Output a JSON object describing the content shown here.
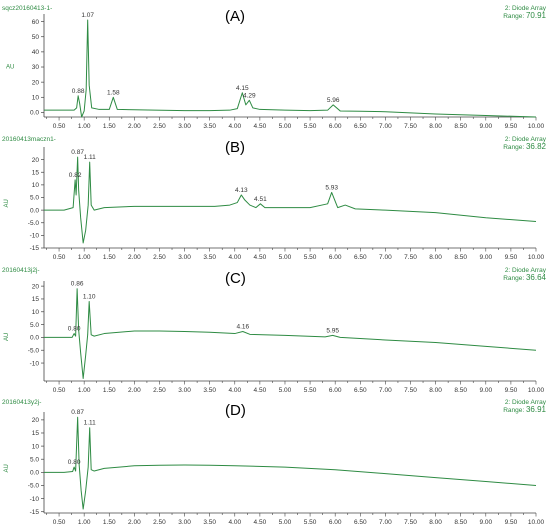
{
  "chart_data": [
    {
      "type": "line",
      "panel_label": "(A)",
      "sample": "sqcz20160413-1-",
      "detector": "2: Diode Array",
      "range_label": "Range:",
      "range_value": "70.91",
      "ylabel": "AU",
      "xlim": [
        0.2,
        10.0
      ],
      "ylim": [
        -3,
        65
      ],
      "x_ticks": [
        "0.50",
        "1.00",
        "1.50",
        "2.00",
        "2.50",
        "3.00",
        "3.50",
        "4.00",
        "4.50",
        "5.00",
        "5.50",
        "6.00",
        "6.50",
        "7.00",
        "7.50",
        "8.00",
        "8.50",
        "9.00",
        "9.50",
        "10.00"
      ],
      "y_ticks": [
        "0.0",
        "10",
        "20",
        "30",
        "40",
        "50",
        "60"
      ],
      "peaks": [
        {
          "x": 0.88,
          "label": "0.88"
        },
        {
          "x": 1.07,
          "label": "1.07"
        },
        {
          "x": 1.58,
          "label": "1.58"
        },
        {
          "x": 4.15,
          "label": "4.15"
        },
        {
          "x": 4.29,
          "label": "4.29"
        },
        {
          "x": 5.96,
          "label": "5.96"
        }
      ],
      "series": [
        {
          "x": [
            0.2,
            0.5,
            0.8,
            0.85,
            0.88,
            0.91,
            0.95,
            1.0,
            1.04,
            1.07,
            1.1,
            1.15,
            1.3,
            1.5,
            1.58,
            1.66,
            2.0,
            2.4,
            3.0,
            3.5,
            3.9,
            4.05,
            4.15,
            4.22,
            4.29,
            4.36,
            4.5,
            5.0,
            5.5,
            5.85,
            5.96,
            6.1,
            6.5,
            7.0,
            8.0,
            9.0,
            10.0
          ],
          "y": [
            1.5,
            1.5,
            1.5,
            3,
            11,
            6,
            -3,
            1,
            15,
            61,
            18,
            3,
            2,
            2,
            10,
            2,
            1.8,
            1.5,
            1.2,
            1.2,
            1.5,
            2.5,
            13,
            5,
            8,
            3,
            2,
            1.5,
            1.2,
            1.5,
            5,
            1,
            0.8,
            0.5,
            -1,
            -2,
            -3
          ]
        }
      ]
    },
    {
      "type": "line",
      "panel_label": "(B)",
      "sample": "20160413maczn1-",
      "detector": "2: Diode Array",
      "range_label": "Range:",
      "range_value": "36.82",
      "ylabel": "AU",
      "xlim": [
        0.2,
        10.0
      ],
      "ylim": [
        -15,
        25
      ],
      "x_ticks": [
        "0.50",
        "1.00",
        "1.50",
        "2.00",
        "2.50",
        "3.00",
        "3.50",
        "4.00",
        "4.50",
        "5.00",
        "5.50",
        "6.00",
        "6.50",
        "7.00",
        "7.50",
        "8.00",
        "8.50",
        "9.00",
        "9.50",
        "10.00"
      ],
      "y_ticks": [
        "-15",
        "-10",
        "-5.0",
        "0.0",
        "5.0",
        "10",
        "15",
        "20"
      ],
      "peaks": [
        {
          "x": 0.82,
          "label": "0.82"
        },
        {
          "x": 0.87,
          "label": "0.87"
        },
        {
          "x": 1.11,
          "label": "1.11"
        },
        {
          "x": 4.13,
          "label": "4.13"
        },
        {
          "x": 4.51,
          "label": "4.51"
        },
        {
          "x": 5.93,
          "label": "5.93"
        }
      ],
      "series": [
        {
          "x": [
            0.2,
            0.6,
            0.78,
            0.82,
            0.84,
            0.87,
            0.89,
            0.93,
            0.98,
            1.03,
            1.08,
            1.11,
            1.14,
            1.2,
            1.4,
            2.0,
            2.5,
            3.0,
            3.6,
            3.9,
            4.05,
            4.13,
            4.2,
            4.3,
            4.42,
            4.51,
            4.6,
            5.0,
            5.5,
            5.85,
            5.93,
            6.05,
            6.2,
            6.4,
            7.0,
            8.0,
            9.0,
            10.0
          ],
          "y": [
            0,
            0,
            1,
            12,
            6,
            21,
            8,
            -3,
            -13,
            -8,
            2,
            19,
            2,
            0,
            1,
            1.5,
            1.5,
            1.5,
            1.5,
            2,
            3,
            6,
            4,
            2,
            1,
            2.5,
            1,
            1,
            1,
            2.5,
            7,
            1,
            2,
            0.5,
            0,
            -1,
            -3,
            -4.5
          ]
        }
      ]
    },
    {
      "type": "line",
      "panel_label": "(C)",
      "sample": "20160413j2j-",
      "detector": "2: Diode Array",
      "range_label": "Range:",
      "range_value": "36.64",
      "ylabel": "AU",
      "xlim": [
        0.2,
        10.0
      ],
      "ylim": [
        -17,
        22
      ],
      "x_ticks": [
        "0.50",
        "1.00",
        "1.50",
        "2.00",
        "2.50",
        "3.00",
        "3.50",
        "4.00",
        "4.50",
        "5.00",
        "5.50",
        "6.00",
        "6.50",
        "7.00",
        "7.50",
        "8.00",
        "8.50",
        "9.00",
        "9.50",
        "10.00"
      ],
      "y_ticks": [
        "-10",
        "-5.0",
        "0.0",
        "5.0",
        "10",
        "15",
        "20"
      ],
      "peaks": [
        {
          "x": 0.8,
          "label": "0.80"
        },
        {
          "x": 0.86,
          "label": "0.86"
        },
        {
          "x": 1.1,
          "label": "1.10"
        },
        {
          "x": 4.16,
          "label": "4.16"
        },
        {
          "x": 5.95,
          "label": "5.95"
        }
      ],
      "series": [
        {
          "x": [
            0.2,
            0.6,
            0.76,
            0.8,
            0.83,
            0.86,
            0.89,
            0.93,
            0.98,
            1.03,
            1.07,
            1.1,
            1.14,
            1.2,
            1.4,
            2.0,
            2.5,
            3.0,
            3.5,
            4.0,
            4.16,
            4.3,
            5.0,
            5.8,
            5.95,
            6.1,
            7.0,
            8.0,
            9.0,
            10.0
          ],
          "y": [
            0,
            0,
            0,
            1.5,
            0.5,
            19,
            3,
            -6,
            -16,
            -7,
            1,
            14,
            1,
            0.5,
            1.5,
            2.5,
            2.5,
            2.3,
            2,
            1.5,
            2.3,
            1.2,
            0.8,
            0.2,
            0.8,
            0,
            -1,
            -2,
            -3.5,
            -5
          ]
        }
      ]
    },
    {
      "type": "line",
      "panel_label": "(D)",
      "sample": "20160413y2j-",
      "detector": "2: Diode Array",
      "range_label": "Range:",
      "range_value": "36.91",
      "ylabel": "AU",
      "xlim": [
        0.2,
        10.0
      ],
      "ylim": [
        -15.5,
        23
      ],
      "x_ticks": [
        "0.50",
        "1.00",
        "1.50",
        "2.00",
        "2.50",
        "3.00",
        "3.50",
        "4.00",
        "4.50",
        "5.00",
        "5.50",
        "6.00",
        "6.50",
        "7.00",
        "7.50",
        "8.00",
        "8.50",
        "9.00",
        "9.50",
        "10.00"
      ],
      "y_ticks": [
        "-15",
        "-10",
        "-5.0",
        "0.0",
        "5.0",
        "10",
        "15",
        "20"
      ],
      "peaks": [
        {
          "x": 0.8,
          "label": "0.80"
        },
        {
          "x": 0.87,
          "label": "0.87"
        },
        {
          "x": 1.11,
          "label": "1.11"
        }
      ],
      "series": [
        {
          "x": [
            0.2,
            0.6,
            0.77,
            0.8,
            0.83,
            0.87,
            0.9,
            0.94,
            0.98,
            1.03,
            1.08,
            1.11,
            1.14,
            1.2,
            1.4,
            2.0,
            2.5,
            3.0,
            3.5,
            4.0,
            5.0,
            6.0,
            7.0,
            8.0,
            9.0,
            10.0
          ],
          "y": [
            0,
            0,
            0.3,
            2,
            0.5,
            21,
            3,
            -7,
            -14,
            -7,
            2,
            17,
            1,
            0.5,
            1.5,
            2.5,
            2.7,
            2.8,
            2.7,
            2.5,
            2,
            1,
            -0.5,
            -2,
            -3.5,
            -5
          ]
        }
      ]
    }
  ],
  "colors": {
    "trace": "#2e8b43",
    "label": "#2e8b43",
    "axis": "#444444",
    "text": "#333333",
    "panel_label": "#000000"
  }
}
